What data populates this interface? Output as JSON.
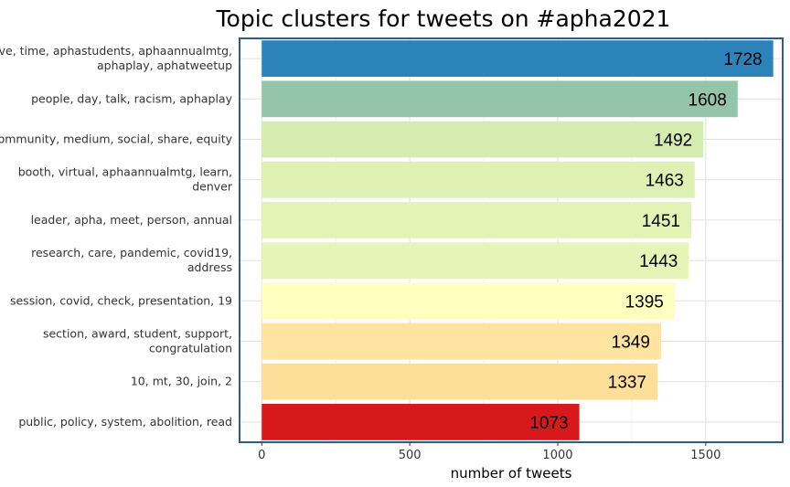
{
  "chart_data": {
    "type": "bar",
    "orientation": "horizontal",
    "title": "Topic clusters for tweets on #apha2021",
    "xlabel": "number of tweets",
    "ylabel": "",
    "xlim": [
      0,
      1760
    ],
    "xticks": [
      0,
      500,
      1000,
      1500
    ],
    "grid": true,
    "legend": "none",
    "bars": [
      {
        "label": [
          "love, time, aphastudents, aphaannualmtg,",
          "aphaplay, aphatweetup"
        ],
        "value": 1728,
        "color": "#2b83ba"
      },
      {
        "label": [
          "people, day, talk, racism, aphaplay"
        ],
        "value": 1608,
        "color": "#94c4a9"
      },
      {
        "label": [
          "community, medium, social, share, equity"
        ],
        "value": 1492,
        "color": "#d5ecb0"
      },
      {
        "label": [
          "booth, virtual, aphaannualmtg, learn,",
          "denver"
        ],
        "value": 1463,
        "color": "#dff1b2"
      },
      {
        "label": [
          "leader, apha, meet, person, annual"
        ],
        "value": 1451,
        "color": "#e3f3b5"
      },
      {
        "label": [
          "research, care, pandemic, covid19,",
          "address"
        ],
        "value": 1443,
        "color": "#e6f4b8"
      },
      {
        "label": [
          "session, covid, check, presentation, 19"
        ],
        "value": 1395,
        "color": "#ffffbf"
      },
      {
        "label": [
          "section, award, student, support,",
          "congratulation"
        ],
        "value": 1349,
        "color": "#fee3a1"
      },
      {
        "label": [
          "10, mt, 30, join, 2"
        ],
        "value": 1337,
        "color": "#fedf9a"
      },
      {
        "label": [
          "public, policy, system, abolition, read"
        ],
        "value": 1073,
        "color": "#d7191c"
      }
    ]
  }
}
